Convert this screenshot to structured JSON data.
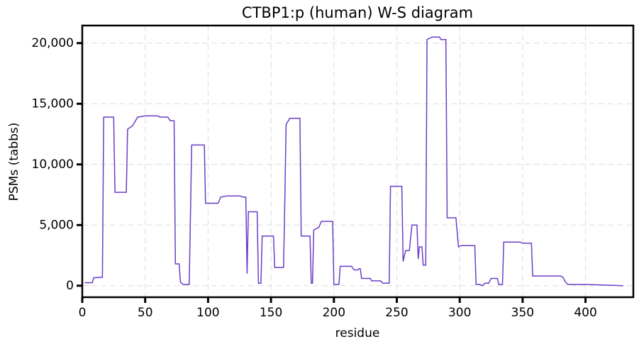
{
  "chart_data": {
    "type": "line",
    "title": "CTBP1:p (human) W-S diagram",
    "x_label": "residue",
    "y_label": "PSMs (tabbs)",
    "color": "#6a3fc8",
    "grid": true,
    "xlim": [
      0,
      438
    ],
    "ylim": [
      -950,
      21450
    ],
    "xticks": [
      0,
      50,
      100,
      150,
      200,
      250,
      300,
      350,
      400
    ],
    "yticks": [
      0,
      {
        "value": 5000,
        "label": "5,000"
      },
      {
        "value": 10000,
        "label": "10,000"
      },
      {
        "value": 15000,
        "label": "15,000"
      },
      {
        "value": 20000,
        "label": "20,000"
      }
    ],
    "x": [
      2,
      8,
      9,
      16,
      17,
      25,
      26,
      35,
      36,
      40,
      44,
      50,
      60,
      62,
      68,
      70,
      73,
      74,
      77,
      78,
      80,
      85,
      87,
      97,
      98,
      108,
      110,
      115,
      125,
      128,
      130,
      131,
      132,
      139,
      140,
      142,
      143,
      152,
      153,
      160,
      161,
      162,
      165,
      173,
      174,
      181,
      182,
      183,
      184,
      188,
      190,
      199,
      200,
      204,
      205,
      214,
      216,
      219,
      220,
      221,
      222,
      229,
      230,
      237,
      239,
      244,
      245,
      254,
      255,
      257,
      260,
      262,
      266,
      267,
      268,
      270,
      271,
      273,
      274,
      278,
      284,
      285,
      289,
      290,
      297,
      299,
      301,
      312,
      313,
      316,
      318,
      320,
      323,
      325,
      330,
      331,
      334,
      335,
      348,
      350,
      357,
      358,
      380,
      382,
      384,
      386,
      400,
      430
    ],
    "values": [
      250,
      250,
      650,
      700,
      13900,
      13900,
      7700,
      7700,
      12900,
      13200,
      13900,
      14000,
      14000,
      13900,
      13900,
      13600,
      13600,
      1800,
      1800,
      300,
      100,
      100,
      11600,
      11600,
      6800,
      6800,
      7300,
      7400,
      7400,
      7300,
      7300,
      1000,
      6100,
      6100,
      200,
      200,
      4100,
      4100,
      1500,
      1500,
      7000,
      13300,
      13800,
      13800,
      4100,
      4100,
      200,
      200,
      4600,
      4800,
      5300,
      5300,
      100,
      100,
      1600,
      1600,
      1300,
      1300,
      1400,
      1400,
      600,
      600,
      400,
      400,
      200,
      200,
      8200,
      8200,
      2000,
      2900,
      2900,
      5000,
      5000,
      2200,
      3200,
      3200,
      1700,
      1700,
      20300,
      20500,
      20500,
      20300,
      20300,
      5600,
      5600,
      3200,
      3300,
      3300,
      100,
      100,
      0,
      200,
      200,
      600,
      600,
      100,
      100,
      3600,
      3600,
      3500,
      3500,
      800,
      800,
      700,
      300,
      100,
      100,
      0
    ]
  }
}
